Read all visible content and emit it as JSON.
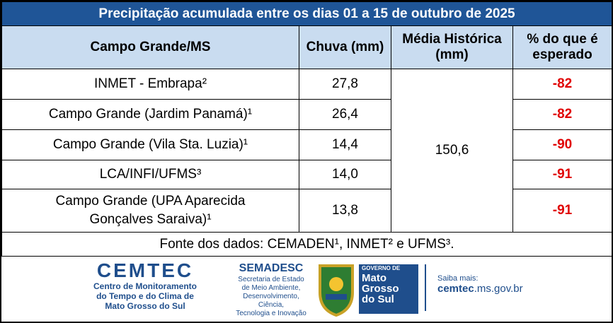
{
  "header": {
    "title": "Precipitação acumulada entre os dias 01 a 15 de outubro de 2025"
  },
  "table": {
    "columns": [
      "Campo Grande/MS",
      "Chuva (mm)",
      "Média Histórica (mm)",
      "% do que é esperado"
    ],
    "rows": [
      [
        "INMET - Embrapa²",
        "27,8",
        "-82"
      ],
      [
        "Campo Grande (Jardim Panamá)¹",
        "26,4",
        "-82"
      ],
      [
        "Campo Grande (Vila Sta. Luzia)¹",
        "14,4",
        "-90"
      ],
      [
        "LCA/INFI/UFMS³",
        "14,0",
        "-91"
      ],
      [
        "Campo Grande (UPA Aparecida Gonçalves Saraiva)¹",
        "13,8",
        "-91"
      ]
    ],
    "media_historica": "150,6"
  },
  "footer": {
    "source": "Fonte dos dados:  CEMADEN¹, INMET² e UFMS³.",
    "cemtec": {
      "name": "CEMTEC",
      "lines": [
        "Centro de Monitoramento",
        "do Tempo e do Clima de",
        "Mato Grosso do Sul"
      ]
    },
    "semadesc": {
      "name": "SEMADESC",
      "lines": [
        "Secretaria de Estado",
        "de Meio Ambiente,",
        "Desenvolvimento, Ciência,",
        "Tecnologia e Inovação"
      ]
    },
    "governo": {
      "lines": [
        "GOVERNO DE",
        "Mato",
        "Grosso",
        "do Sul"
      ]
    },
    "site": {
      "label": "Saiba mais:",
      "domain": "cemtec",
      ".rest": ".ms.gov.br"
    }
  }
}
